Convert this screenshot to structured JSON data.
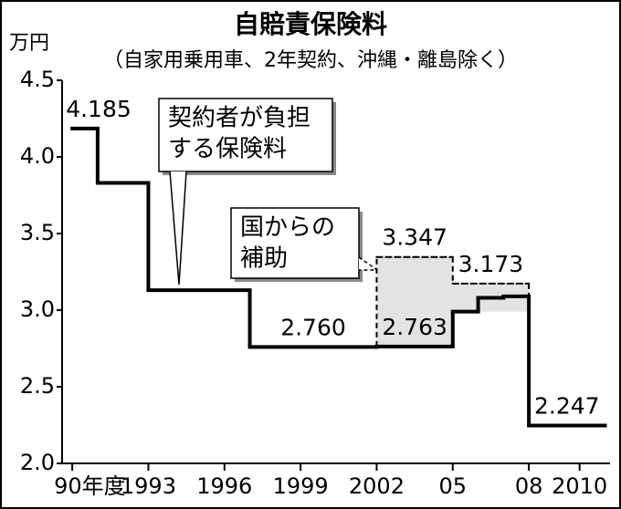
{
  "chart_data": {
    "type": "step",
    "title": "自賠責保険料",
    "subtitle": "（自家用乗用車、2年契約、沖縄・離島除く）",
    "y_unit": "万円",
    "xlim": [
      1989.6,
      2011.2
    ],
    "xticks": [
      {
        "value": 1990,
        "label": "90年度"
      },
      1993,
      1996,
      1999,
      2002,
      {
        "value": 2005,
        "label": "05"
      },
      {
        "value": 2008,
        "label": "08"
      },
      2010
    ],
    "ylim": [
      2.0,
      4.5
    ],
    "yticks": [
      {
        "value": 2.0,
        "label": "2.0"
      },
      2.5,
      {
        "value": 3.0,
        "label": "3.0"
      },
      3.5,
      {
        "value": 4.0,
        "label": "4.0"
      },
      4.5
    ],
    "series": [
      {
        "name": "契約者が負担する保険料",
        "color": "#000000",
        "style": "solid",
        "x": [
          1990,
          1991,
          1993,
          1997,
          2002,
          2005,
          2006,
          2007,
          2008,
          2011
        ],
        "values": [
          4.185,
          3.83,
          3.13,
          2.76,
          2.763,
          2.99,
          3.08,
          3.09,
          2.247,
          null
        ],
        "value_labels": [
          "4.185",
          null,
          null,
          "2.760",
          "2.763",
          null,
          null,
          null,
          "2.247",
          null
        ]
      },
      {
        "name": "国からの補助",
        "color": "#000000",
        "fill": "#e3e3e3",
        "style": "dashed",
        "x": [
          2002,
          2005,
          2008
        ],
        "values": [
          3.347,
          3.173,
          null
        ],
        "value_labels": [
          "3.347",
          "3.173",
          null
        ]
      }
    ],
    "annotations": [
      [
        "契約者が負担",
        "する保険料"
      ],
      [
        "国からの",
        "補助"
      ]
    ]
  }
}
